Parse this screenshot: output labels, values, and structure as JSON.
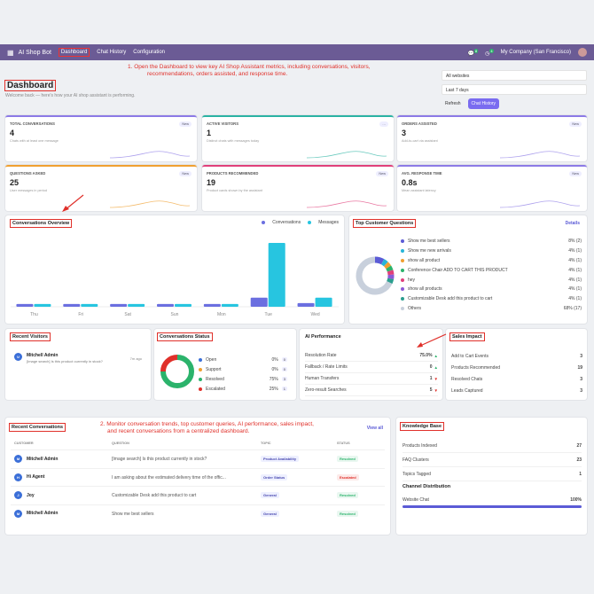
{
  "topbar": {
    "brand": "AI Shop Bot",
    "nav": [
      "Dashboard",
      "Chat History",
      "Configuration"
    ],
    "badge_chat": "8",
    "badge_activity": "4",
    "company": "My Company (San Francisco)"
  },
  "annotations": {
    "a1": "1. Open the Dashboard to view key AI Shop Assistant metrics, including conversations, visitors,",
    "a1b": "recommendations, orders assisted, and response time.",
    "a2": "2. Monitor conversation trends, top customer queries, AI performance, sales impact,",
    "a2b": "and recent conversations from a centralized dashboard."
  },
  "header": {
    "title": "Dashboard",
    "subtitle": "Welcome back — here's how your AI shop assistant is performing."
  },
  "filters": {
    "website": "All websites",
    "range": "Last 7 days",
    "refresh": "Refresh",
    "chat_history": "Chat History"
  },
  "kpis": [
    {
      "label": "TOTAL CONVERSATIONS",
      "value": "4",
      "sub": "Chats with at least one message",
      "badge": "New",
      "color": "#8c7ae6"
    },
    {
      "label": "ACTIVE VISITORS",
      "value": "1",
      "sub": "Distinct chats with messages today",
      "badge": "…",
      "color": "#2bb3a3"
    },
    {
      "label": "ORDERS ASSISTED",
      "value": "3",
      "sub": "Add-to-cart via assistant",
      "badge": "New",
      "color": "#8c7ae6"
    },
    {
      "label": "QUESTIONS ASKED",
      "value": "25",
      "sub": "User messages in period",
      "badge": "New",
      "color": "#f0a030"
    },
    {
      "label": "PRODUCTS RECOMMENDED",
      "value": "19",
      "sub": "Product cards shown by the assistant",
      "badge": "New",
      "color": "#e0407a"
    },
    {
      "label": "AVG. RESPONSE TIME",
      "value": "0.8s",
      "sub": "Mean assistant latency",
      "badge": "New",
      "color": "#8c7ae6"
    }
  ],
  "conv_overview": {
    "title": "Conversations Overview",
    "legend": [
      "Conversations",
      "Messages"
    ],
    "colors": [
      "#6b6fe0",
      "#27c5e0"
    ]
  },
  "chart_data": {
    "type": "bar",
    "categories": [
      "Thu",
      "Fri",
      "Sat",
      "Sun",
      "Mon",
      "Tue",
      "Wed"
    ],
    "series": [
      {
        "name": "Conversations",
        "values": [
          0.3,
          0.3,
          0.3,
          0.3,
          0.3,
          1,
          0.4
        ]
      },
      {
        "name": "Messages",
        "values": [
          0.3,
          0.3,
          0.3,
          0.3,
          0.3,
          7,
          1
        ]
      }
    ]
  },
  "top_questions": {
    "title": "Top Customer Questions",
    "details": "Details",
    "items": [
      {
        "label": "Show me best sellers",
        "value": "8% (2)",
        "color": "#5b5bd6"
      },
      {
        "label": "Show me new arrivals",
        "value": "4% (1)",
        "color": "#27b5d8"
      },
      {
        "label": "show all product",
        "value": "4% (1)",
        "color": "#f0a030"
      },
      {
        "label": "Conference Chair ADD TO CART THIS PRODUCT",
        "value": "4% (1)",
        "color": "#2bb36b"
      },
      {
        "label": "hey",
        "value": "4% (1)",
        "color": "#e0407a"
      },
      {
        "label": "show all products",
        "value": "4% (1)",
        "color": "#8c5ad6"
      },
      {
        "label": "Customizable Desk add this product to cart",
        "value": "4% (1)",
        "color": "#2b9e8f"
      },
      {
        "label": "Others",
        "value": "68% (17)",
        "color": "#c8d0dc"
      }
    ]
  },
  "recent_visitors": {
    "title": "Recent Visitors",
    "name": "Mitchell Admin",
    "initial": "M",
    "message": "[Image search] Is this product currently in stock?",
    "time": "7m ago"
  },
  "conv_status": {
    "title": "Conversations Status",
    "items": [
      {
        "label": "Open",
        "value": "0%",
        "count": "0",
        "color": "#3b6fd8"
      },
      {
        "label": "Support",
        "value": "0%",
        "count": "0",
        "color": "#f0a030"
      },
      {
        "label": "Resolved",
        "value": "75%",
        "count": "3",
        "color": "#2bb36b"
      },
      {
        "label": "Escalated",
        "value": "25%",
        "count": "1",
        "color": "#e0302a"
      }
    ]
  },
  "ai_perf": {
    "title": "AI Performance",
    "items": [
      {
        "label": "Resolution Rate",
        "value": "75.0%",
        "trend": "▲",
        "tcolor": "#2bb36b"
      },
      {
        "label": "Fallback / Rate Limits",
        "value": "0",
        "trend": "▲",
        "tcolor": "#2bb36b"
      },
      {
        "label": "Human Transfers",
        "value": "1",
        "trend": "▼",
        "tcolor": "#e0302a"
      },
      {
        "label": "Zero-result Searches",
        "value": "5",
        "trend": "▼",
        "tcolor": "#e0302a"
      }
    ]
  },
  "sales": {
    "title": "Sales Impact",
    "items": [
      {
        "label": "Add to Cart Events",
        "value": "3"
      },
      {
        "label": "Products Recommended",
        "value": "19"
      },
      {
        "label": "Resolved Chats",
        "value": "3"
      },
      {
        "label": "Leads Captured",
        "value": "3"
      }
    ]
  },
  "recent_conv": {
    "title": "Recent Conversations",
    "view_all": "View all",
    "headers": [
      "CUSTOMER",
      "QUESTION",
      "TOPIC",
      "STATUS"
    ],
    "rows": [
      {
        "initial": "M",
        "customer": "Mitchell Admin",
        "question": "[Image search] Is this product currently in stock?",
        "topic": "Product Availability",
        "status": "Resolved",
        "scolor": "#2bb36b"
      },
      {
        "initial": "H",
        "customer": "Hi Agent",
        "question": "I am asking about the estimated delivery time of the offic...",
        "topic": "Order Status",
        "status": "Escalated",
        "scolor": "#e0302a"
      },
      {
        "initial": "J",
        "customer": "Joy",
        "question": "Customizable Desk add this product to cart",
        "topic": "General",
        "status": "Resolved",
        "scolor": "#2bb36b"
      },
      {
        "initial": "M",
        "customer": "Mitchell Admin",
        "question": "Show me best sellers",
        "topic": "General",
        "status": "Resolved",
        "scolor": "#2bb36b"
      }
    ]
  },
  "kb": {
    "title": "Knowledge Base",
    "items": [
      {
        "label": "Products Indexed",
        "value": "27"
      },
      {
        "label": "FAQ Clusters",
        "value": "23"
      },
      {
        "label": "Topics Tagged",
        "value": "1"
      }
    ],
    "channel_title": "Channel Distribution",
    "channel": "Website Chat",
    "channel_value": "100%",
    "channel_fraction": 1
  }
}
